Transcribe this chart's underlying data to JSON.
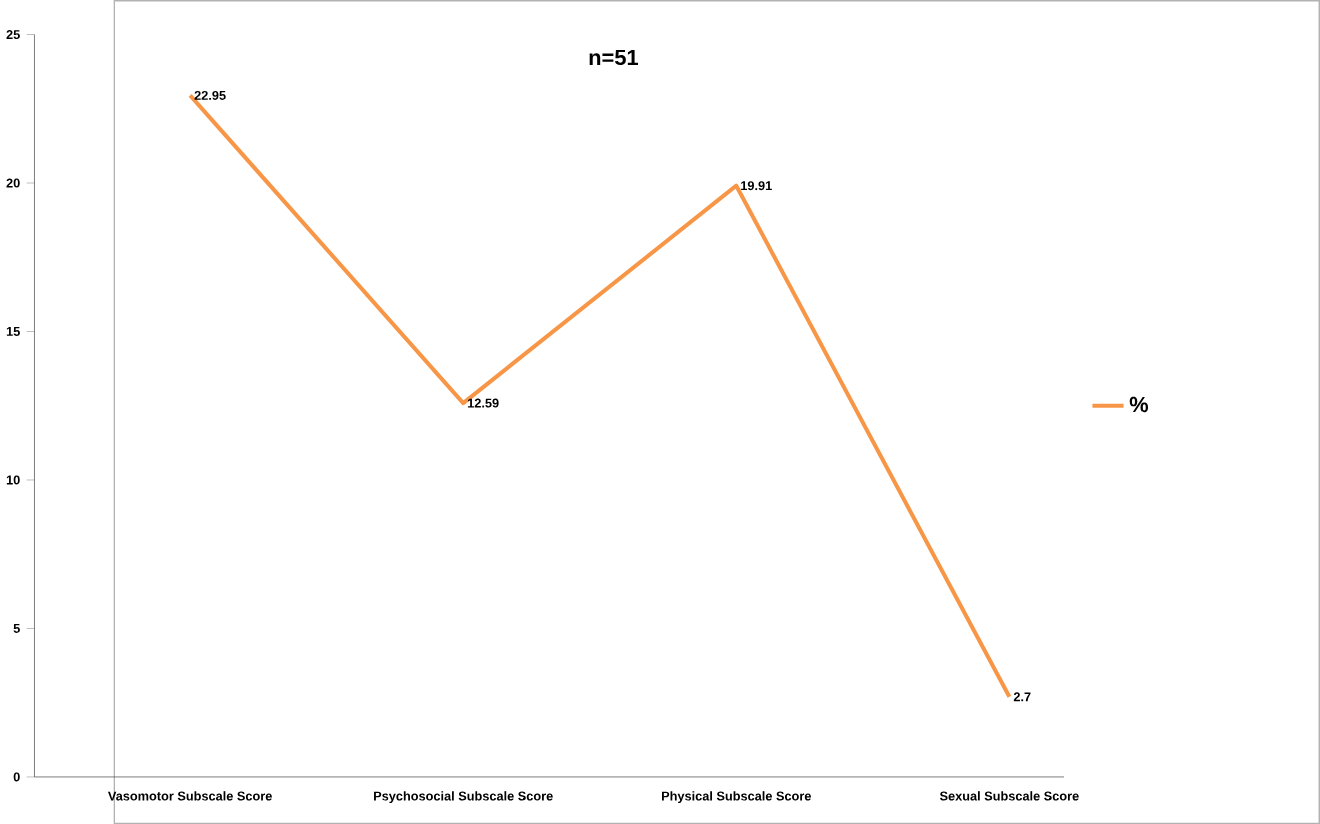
{
  "chart_data": {
    "type": "line",
    "title": "n=51",
    "categories": [
      "Vasomotor Subscale Score",
      "Psychosocial Subscale Score",
      "Physical Subscale Score",
      "Sexual Subscale Score"
    ],
    "series": [
      {
        "name": "%",
        "color": "#f79646",
        "values": [
          22.95,
          12.59,
          19.91,
          2.7
        ]
      }
    ],
    "ylim": [
      0,
      25
    ],
    "yticks": [
      0,
      5,
      10,
      15,
      20,
      25
    ],
    "data_labels": true,
    "legend": "right",
    "marker": "none",
    "line_style": "solid",
    "grid": false
  }
}
